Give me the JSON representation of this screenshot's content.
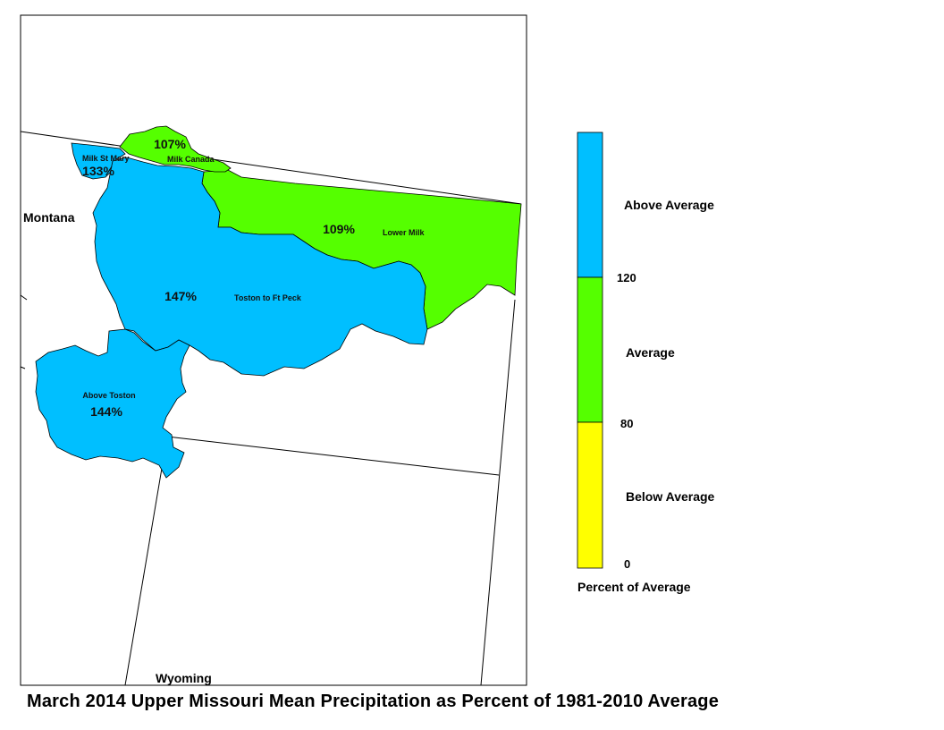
{
  "title": "March 2014 Upper Missouri Mean Precipitation as Percent of 1981-2010 Average",
  "states": {
    "montana": "Montana",
    "wyoming": "Wyoming"
  },
  "colors": {
    "above": "#00BFFF",
    "average": "#55FF00",
    "below": "#FFFF00"
  },
  "basins": {
    "milk_canada": {
      "name": "Milk Canada",
      "pct": "107%",
      "category": "average"
    },
    "milk_st_mary": {
      "name": "Milk St Mary",
      "pct": "133%",
      "category": "above"
    },
    "lower_milk": {
      "name": "Lower Milk",
      "pct": "109%",
      "category": "average"
    },
    "toston_ftpeck": {
      "name": "Toston to Ft Peck",
      "pct": "147%",
      "category": "above"
    },
    "above_toston": {
      "name": "Above Toston",
      "pct": "144%",
      "category": "above"
    }
  },
  "legend": {
    "classes": [
      {
        "label": "Above Average",
        "color": "#00BFFF"
      },
      {
        "label": "Average",
        "color": "#55FF00"
      },
      {
        "label": "Below Average",
        "color": "#FFFF00"
      }
    ],
    "breaks": [
      "120",
      "80",
      "0"
    ],
    "caption": "Percent of Average"
  }
}
